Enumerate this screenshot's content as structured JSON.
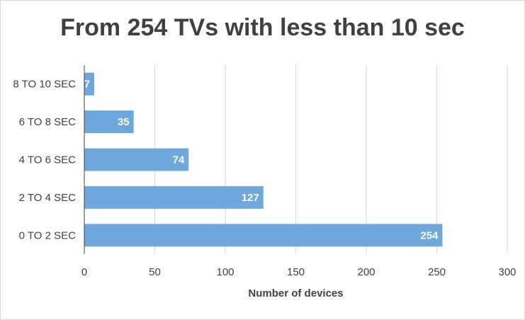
{
  "chart_data": {
    "type": "bar",
    "orientation": "horizontal",
    "title": "From 254 TVs with less than 10 sec",
    "xlabel": "Number of devices",
    "ylabel": "",
    "categories": [
      "0 TO 2 SEC",
      "2 TO 4 SEC",
      "4 TO 6 SEC",
      "6 TO 8 SEC",
      "8 TO 10 SEC"
    ],
    "values": [
      254,
      127,
      74,
      35,
      7
    ],
    "data_labels": [
      "254",
      "127",
      "74",
      "35",
      "7"
    ],
    "xlim": [
      0,
      300
    ],
    "xticks": [
      0,
      50,
      100,
      150,
      200,
      250,
      300
    ],
    "xtick_labels": [
      "0",
      "50",
      "100",
      "150",
      "200",
      "250",
      "300"
    ],
    "grid": true,
    "legend": "none",
    "bar_color": "#6fa8dc"
  }
}
